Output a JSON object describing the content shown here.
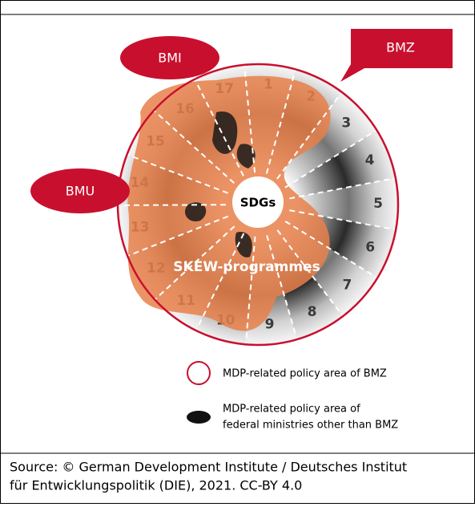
{
  "callouts": {
    "bmi": "BMI",
    "bmz": "BMZ",
    "bmu": "BMU"
  },
  "sdgs": [
    1,
    2,
    3,
    4,
    5,
    6,
    7,
    8,
    9,
    10,
    11,
    12,
    13,
    14,
    15,
    16,
    17
  ],
  "center": "SDGs",
  "blob_label": "SKEW-programmes",
  "legend": [
    {
      "lines": [
        "MDP-related policy area of BMZ"
      ]
    },
    {
      "lines": [
        "MDP-related policy area of",
        "federal ministries other than BMZ"
      ]
    }
  ],
  "source": {
    "lines": [
      "Source: © German Development Institute / Deutsches Institut",
      "für Entwicklungspolitik (DIE), 2021. CC-BY 4.0"
    ]
  }
}
